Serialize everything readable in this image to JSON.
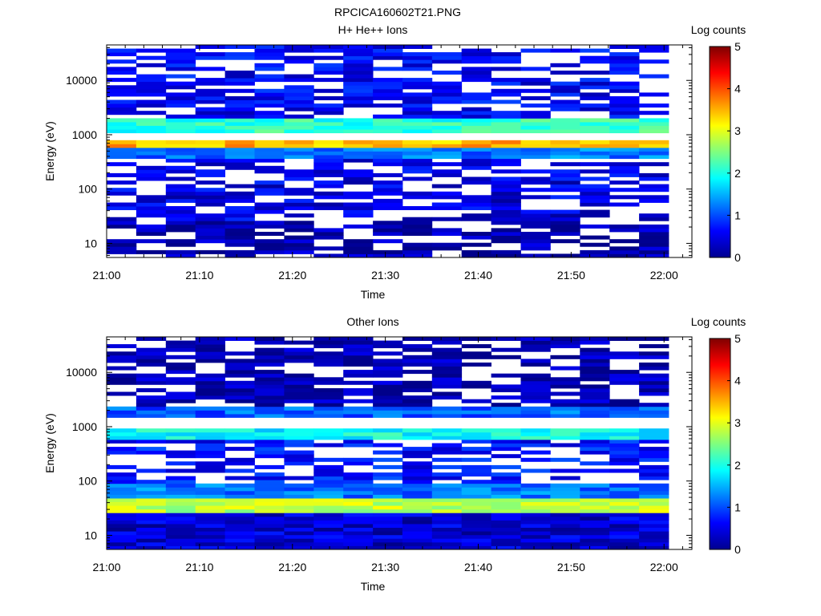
{
  "page_title": "RPCICA160602T21.PNG",
  "chart_data": [
    {
      "type": "heatmap",
      "title": "H+ He++ Ions",
      "xlabel": "Time",
      "ylabel": "Energy (eV)",
      "x_ticks": [
        "21:00",
        "21:10",
        "21:20",
        "21:30",
        "21:40",
        "21:50",
        "22:00"
      ],
      "x_range": [
        "21:00",
        "22:03"
      ],
      "y_scale": "log",
      "y_ticks": [
        10,
        100,
        1000,
        10000
      ],
      "y_range": [
        5.5,
        45000
      ],
      "x_bins": 19,
      "colorbar": {
        "label": "Log counts",
        "ticks": [
          0,
          1,
          2,
          3,
          4,
          5
        ],
        "range": [
          0,
          5
        ],
        "colormap": "jet"
      },
      "bands": [
        {
          "energy_range": [
            550,
            850
          ],
          "level": 3.5,
          "note": "peak flux band"
        },
        {
          "energy_range": [
            1100,
            1900
          ],
          "level": 2.1
        },
        {
          "energy_range": [
            380,
            550
          ],
          "level": 1.2
        },
        {
          "energy_range": [
            1900,
            45000
          ],
          "level": 0.6,
          "sparse": true
        },
        {
          "energy_range": [
            25,
            380
          ],
          "level": 0.5,
          "sparse": true
        },
        {
          "energy_range": [
            5.5,
            25
          ],
          "level": 0.2,
          "sparse": true
        }
      ]
    },
    {
      "type": "heatmap",
      "title": "Other Ions",
      "xlabel": "Time",
      "ylabel": "Energy (eV)",
      "x_ticks": [
        "21:00",
        "21:10",
        "21:20",
        "21:30",
        "21:40",
        "21:50",
        "22:00"
      ],
      "x_range": [
        "21:00",
        "22:03"
      ],
      "y_scale": "log",
      "y_ticks": [
        10,
        100,
        1000,
        10000
      ],
      "y_range": [
        5.5,
        45000
      ],
      "x_bins": 19,
      "colorbar": {
        "label": "Log counts",
        "ticks": [
          0,
          1,
          2,
          3,
          4,
          5
        ],
        "range": [
          0,
          5
        ],
        "colormap": "jet"
      },
      "bands": [
        {
          "energy_range": [
            28,
            45
          ],
          "level": 2.8,
          "note": "peak flux band"
        },
        {
          "energy_range": [
            45,
            90
          ],
          "level": 1.2
        },
        {
          "energy_range": [
            600,
            900
          ],
          "level": 1.9
        },
        {
          "energy_range": [
            1500,
            2200
          ],
          "level": 1.1
        },
        {
          "energy_range": [
            90,
            600
          ],
          "level": 0.7,
          "sparse": true
        },
        {
          "energy_range": [
            2200,
            45000
          ],
          "level": 0.2,
          "sparse": true
        },
        {
          "energy_range": [
            5.5,
            28
          ],
          "level": 0.4
        }
      ]
    }
  ]
}
